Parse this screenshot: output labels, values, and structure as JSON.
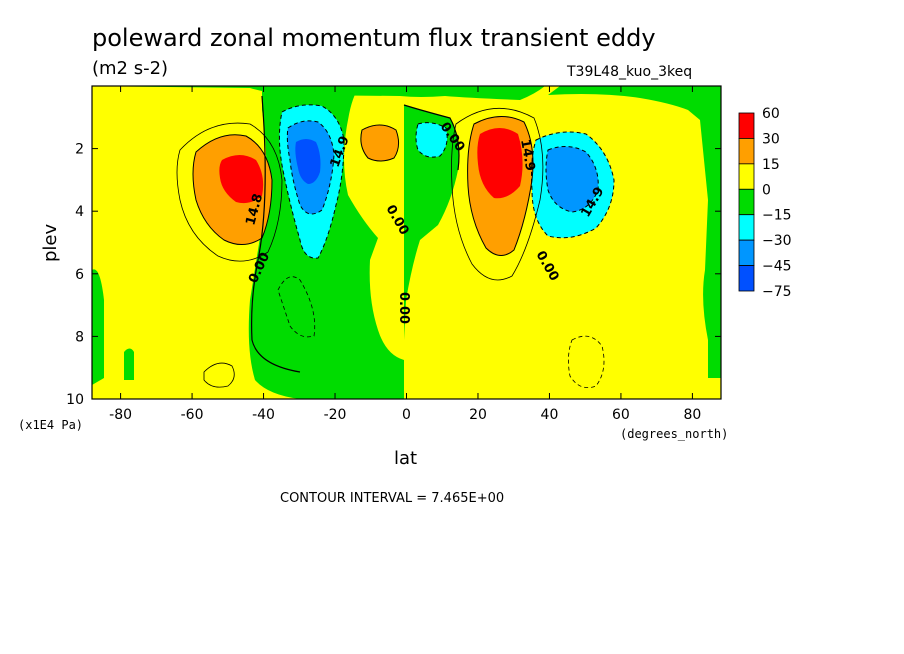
{
  "chart_data": {
    "type": "heatmap",
    "title": "poleward zonal momentum flux transient eddy",
    "units": "(m2 s-2)",
    "run_label": "T39L48_kuo_3keq",
    "xlabel": "lat",
    "x_unit_label": "(degrees_north)",
    "ylabel": "plev",
    "y_unit_label": "(x1E4 Pa)",
    "xlim": [
      -88,
      88
    ],
    "ylim": [
      10,
      0
    ],
    "x_ticks": [
      "-80",
      "-60",
      "-40",
      "-20",
      "0",
      "20",
      "40",
      "60",
      "80"
    ],
    "y_ticks": [
      "2",
      "4",
      "6",
      "8",
      "10"
    ],
    "contour_interval_text": "CONTOUR INTERVAL = 7.465E+00",
    "contour_labels": [
      "14.8",
      "0.00",
      "14.9",
      "0.00",
      "0.00",
      "0.00",
      "0.00",
      "14.9",
      "14.9"
    ],
    "colorbar": {
      "labels": [
        "60",
        "30",
        "15",
        "0",
        "−15",
        "−30",
        "−45",
        "−75"
      ],
      "colors": [
        "#ff0000",
        "#ff9f00",
        "#ffff00",
        "#00dc00",
        "#00ffff",
        "#0096ff",
        "#0050ff"
      ]
    },
    "features": [
      {
        "name": "SH positive jet flux maximum",
        "lat": -47,
        "plev": 3.0,
        "value": 45
      },
      {
        "name": "SH negative flux minimum",
        "lat": -27,
        "plev": 2.5,
        "value": -50
      },
      {
        "name": "tropical positive cell",
        "lat": -7,
        "plev": 2.0,
        "value": 22
      },
      {
        "name": "tropical negative cell",
        "lat": 7,
        "plev": 2.0,
        "value": -20
      },
      {
        "name": "NH positive jet flux maximum",
        "lat": 27,
        "plev": 2.5,
        "value": 55
      },
      {
        "name": "NH negative flux minimum",
        "lat": 45,
        "plev": 3.0,
        "value": -45
      }
    ],
    "colors": {
      "positive_high": "#ff0000",
      "positive_mid": "#ff9f00",
      "positive_low": "#ffff00",
      "negative_low": "#00dc00",
      "negative_mid": "#00ffff",
      "negative_high": "#0096ff",
      "negative_max": "#0050ff"
    }
  }
}
